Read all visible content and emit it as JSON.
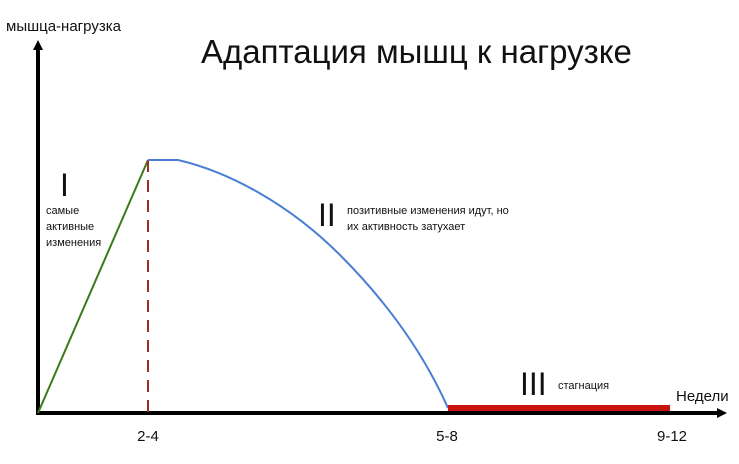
{
  "axes": {
    "y_label": "мышца-нагрузка",
    "x_label": "Недели",
    "x_ticks": [
      "2-4",
      "5-8",
      "9-12"
    ]
  },
  "title": "Адаптация мышц к нагрузке",
  "phases": [
    {
      "numeral": "I",
      "lines": [
        "самые",
        "активные",
        "изменения"
      ]
    },
    {
      "numeral": "II",
      "lines": [
        "позитивные изменения идут, но",
        "их активность затухает"
      ]
    },
    {
      "numeral": "III",
      "lines": [
        "стагнация"
      ]
    }
  ]
}
